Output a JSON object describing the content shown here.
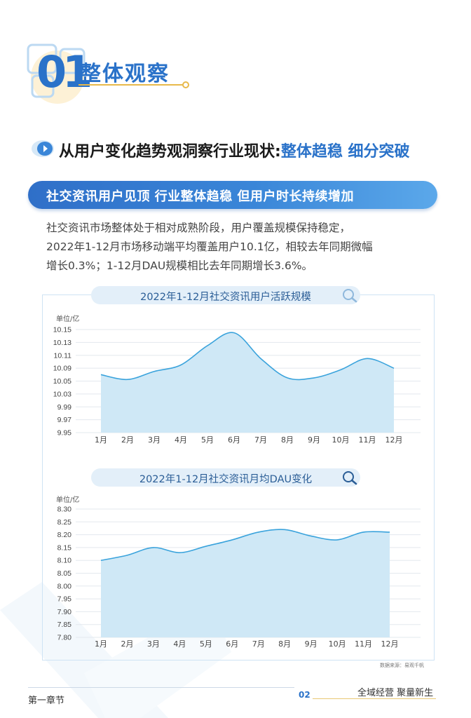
{
  "section": {
    "number": "01",
    "title": "整体观察"
  },
  "subheading": {
    "prefix": "从用户变化趋势观洞察行业现状:",
    "highlight": "整体趋稳 细分突破"
  },
  "banner": "社交资讯用户见顶 行业整体趋稳 但用户时长持续增加",
  "paragraph": [
    "社交资讯市场整体处于相对成熟阶段，用户覆盖规模保持稳定，",
    "2022年1-12月市场移动端平均覆盖用户10.1亿，相较去年同期微幅",
    "增长0.3%；1-12月DAU规模相比去年同期增长3.6%。"
  ],
  "colors": {
    "accent": "#2a72c9",
    "area_fill": "#cfe8f6",
    "area_stroke": "#3aa3dc",
    "gold": "#e8b94a"
  },
  "chart_data": [
    {
      "type": "area",
      "title": "2022年1-12月社交资讯用户活跃规模",
      "ylabel": "单位/亿",
      "categories": [
        "1月",
        "2月",
        "3月",
        "4月",
        "5月",
        "6月",
        "7月",
        "8月",
        "9月",
        "10月",
        "11月",
        "12月"
      ],
      "values": [
        10.07,
        10.055,
        10.08,
        10.095,
        10.125,
        10.145,
        10.105,
        10.06,
        10.06,
        10.085,
        10.105,
        10.09
      ],
      "yticks": [
        "10.15",
        "10.13",
        "10.11",
        "10.09",
        "10.05",
        "10.03",
        "9.99",
        "9.97",
        "9.95"
      ],
      "ylim": [
        9.95,
        10.15
      ],
      "grid": true
    },
    {
      "type": "area",
      "title": "2022年1-12月社交资讯月均DAU变化",
      "ylabel": "单位/亿",
      "categories": [
        "1月",
        "2月",
        "3月",
        "4月",
        "5月",
        "6月",
        "7月",
        "8月",
        "9月",
        "10月",
        "11月",
        "12月"
      ],
      "values": [
        8.1,
        8.12,
        8.15,
        8.13,
        8.155,
        8.18,
        8.21,
        8.22,
        8.195,
        8.18,
        8.21,
        8.21
      ],
      "yticks": [
        "8.30",
        "8.25",
        "8.20",
        "8.15",
        "8.10",
        "8.05",
        "8.00",
        "7.95",
        "7.90",
        "7.85",
        "7.80"
      ],
      "ylim": [
        7.8,
        8.3
      ],
      "grid": true
    }
  ],
  "source": "数据来源：易观千帆",
  "footer": {
    "chapter": "第一章节",
    "page": "02",
    "slogan": "全域经营 聚量新生"
  },
  "icons": {
    "pill": "search-magnifier-icon",
    "subhead": "arrow-bullet-icon"
  }
}
